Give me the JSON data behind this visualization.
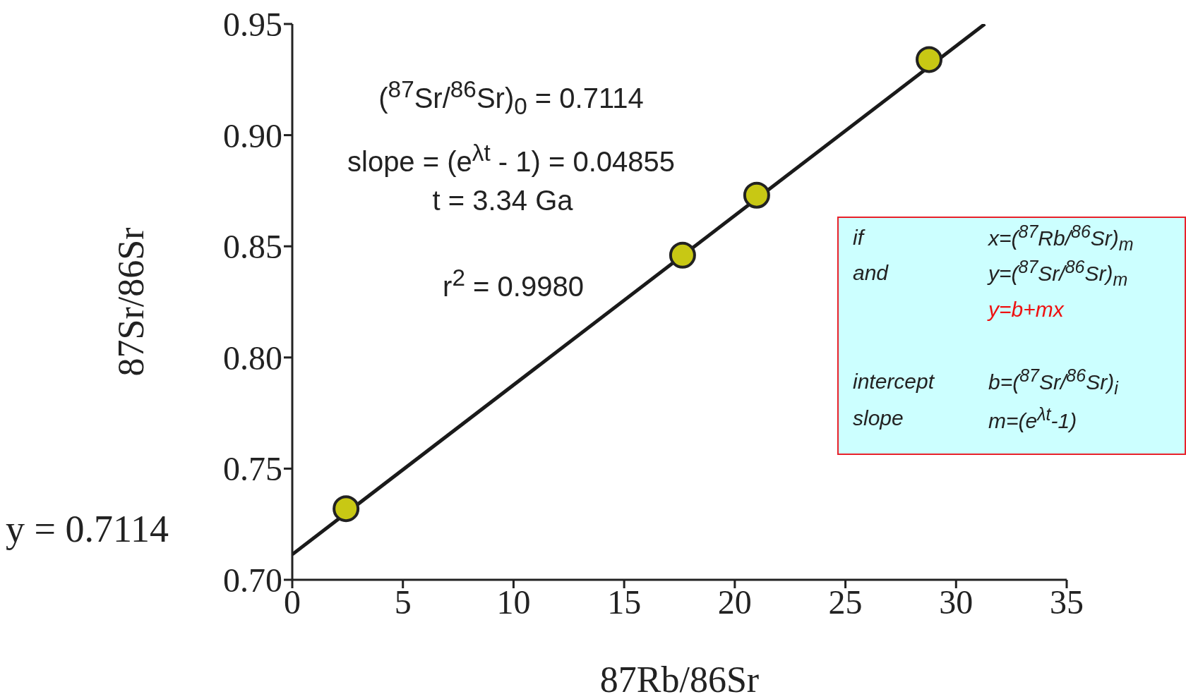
{
  "chart_data": {
    "type": "scatter",
    "xlabel": "87Rb/86Sr",
    "ylabel": "87Sr/86Sr",
    "xlim": [
      0,
      35
    ],
    "xticks": [
      0,
      5,
      10,
      15,
      20,
      25,
      30,
      35
    ],
    "ylim": [
      0.7,
      0.95
    ],
    "yticks": [
      {
        "value": 0.7,
        "label": "0.70"
      },
      0.75,
      {
        "value": 0.8,
        "label": "0.80"
      },
      0.85,
      {
        "value": 0.9,
        "label": "0.90"
      },
      0.95
    ],
    "marker": "circle",
    "series": [
      {
        "color": "#c8c814",
        "x": [
          2.43,
          17.64,
          20.99,
          28.78
        ],
        "values": [
          0.732,
          0.846,
          0.873,
          0.934
        ]
      },
      {
        "type": "line",
        "marker": "none",
        "color": "#1a1a1a",
        "x": [
          0,
          31.3
        ],
        "values": [
          0.7114,
          0.95
        ]
      }
    ],
    "annotations": [
      "($^{87}$Sr/$^{86}$Sr)$_{0}$ = 0.7114",
      "slope = (e$^{λt}$ - 1) = 0.04855",
      "t = 3.34 Ga",
      "r$^{2}$ = 0.9980",
      "y = 0.7114",
      "if",
      "x=($^{87}$Rb/$^{86}$Sr)$_{m}$",
      "and",
      "y=($^{87}$Sr/$^{86}$Sr)$_{m}$",
      "y=b+mx",
      "intercept",
      "b=($^{87}$Sr/$^{86}$Sr)$_{i}$",
      "slope",
      "m=(e$^{λt}$-1)"
    ]
  }
}
